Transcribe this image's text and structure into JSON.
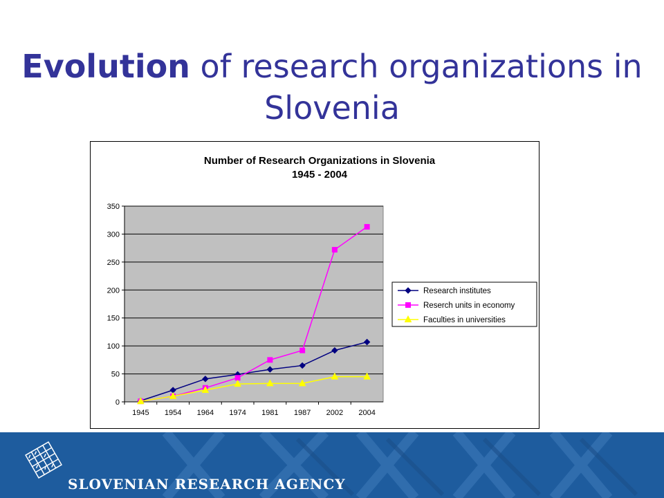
{
  "slide": {
    "title_bold": "Evolution",
    "title_rest": " of research organizations in Slovenia"
  },
  "footer": {
    "agency_name": "SLOVENIAN RESEARCH AGENCY"
  },
  "colors": {
    "title": "#333399",
    "plot_bg": "#c0c0c0",
    "footer_bg": "#1e5c9e"
  },
  "chart_data": {
    "type": "line",
    "title": "Number of Research Organizations in Slovenia",
    "subtitle": "1945 - 2004",
    "categories": [
      "1945",
      "1954",
      "1964",
      "1974",
      "1981",
      "1987",
      "2002",
      "2004"
    ],
    "ylim": [
      0,
      350
    ],
    "yticks": [
      0,
      50,
      100,
      150,
      200,
      250,
      300,
      350
    ],
    "grid": true,
    "legend_position": "right",
    "series": [
      {
        "name": "Research institutes",
        "color": "#000080",
        "marker": "diamond",
        "values": [
          2,
          21,
          41,
          49,
          58,
          65,
          92,
          107
        ]
      },
      {
        "name": "Reserch units in economy",
        "color": "#ff00ff",
        "marker": "square",
        "values": [
          1,
          10,
          25,
          43,
          75,
          92,
          272,
          313
        ]
      },
      {
        "name": "Faculties in universities",
        "color": "#ffff00",
        "marker": "triangle",
        "values": [
          1,
          10,
          21,
          32,
          33,
          33,
          45,
          45
        ]
      }
    ]
  }
}
